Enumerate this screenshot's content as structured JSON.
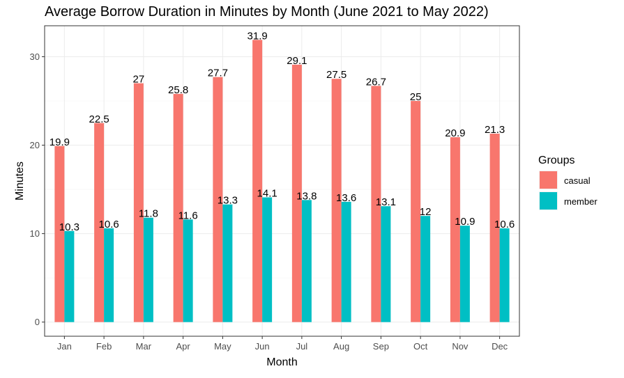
{
  "chart_data": {
    "type": "bar",
    "title": "Average Borrow Duration in Minutes by Month (June 2021 to May 2022)",
    "xlabel": "Month",
    "ylabel": "Minutes",
    "categories": [
      "Jan",
      "Feb",
      "Mar",
      "Apr",
      "May",
      "Jun",
      "Jul",
      "Aug",
      "Sep",
      "Oct",
      "Nov",
      "Dec"
    ],
    "series": [
      {
        "name": "casual",
        "color": "#F8766D",
        "values": [
          19.9,
          22.5,
          27,
          25.8,
          27.7,
          31.9,
          29.1,
          27.5,
          26.7,
          25,
          20.9,
          21.3
        ]
      },
      {
        "name": "member",
        "color": "#00BFC4",
        "values": [
          10.3,
          10.6,
          11.8,
          11.6,
          13.3,
          14.1,
          13.8,
          13.6,
          13.1,
          12,
          10.9,
          10.6
        ]
      }
    ],
    "ylim": [
      -1.6,
      33.5
    ],
    "yticks": [
      0,
      10,
      20,
      30
    ],
    "grid": true,
    "legend": {
      "title": "Groups",
      "position": "right"
    }
  }
}
